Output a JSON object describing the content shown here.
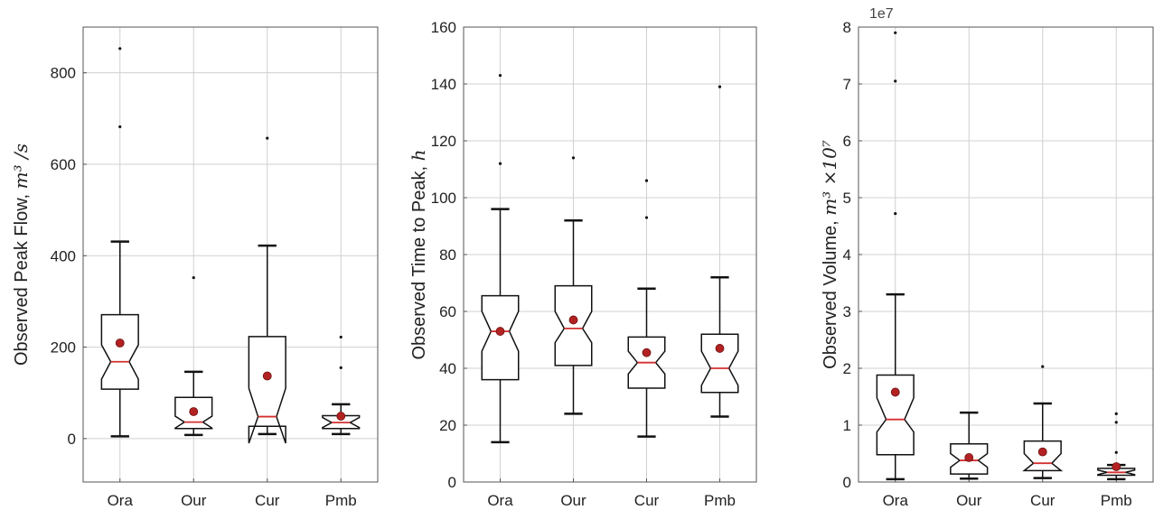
{
  "chart_data": [
    {
      "type": "box",
      "notched": true,
      "categories": [
        "Ora",
        "Our",
        "Cur",
        "Pmb"
      ],
      "ylabel": "Observed Peak Flow, ",
      "ylabel_math": "m³ /s",
      "ylim": [
        -95,
        900
      ],
      "yticks": [
        0,
        200,
        400,
        600,
        800
      ],
      "y_offset_label": "",
      "grid": true,
      "boxes": [
        {
          "category": "Ora",
          "whislo": 5,
          "q1": 108,
          "med": 168,
          "q3": 271,
          "whishi": 431,
          "notch_lo": 130,
          "notch_hi": 205,
          "mean": 209,
          "fliers": [
            682,
            853
          ]
        },
        {
          "category": "Our",
          "whislo": 8,
          "q1": 22,
          "med": 36,
          "q3": 90,
          "whishi": 146,
          "notch_lo": 23,
          "notch_hi": 49,
          "mean": 59,
          "fliers": [
            352
          ]
        },
        {
          "category": "Cur",
          "whislo": 10,
          "q1": 27,
          "med": 48,
          "q3": 223,
          "whishi": 422,
          "notch_lo": -10,
          "notch_hi": 110,
          "mean": 137,
          "fliers": [
            657
          ]
        },
        {
          "category": "Pmb",
          "whislo": 10,
          "q1": 22,
          "med": 35,
          "q3": 50,
          "whishi": 75,
          "notch_lo": 24,
          "notch_hi": 46,
          "mean": 49,
          "fliers": [
            155,
            222
          ]
        }
      ]
    },
    {
      "type": "box",
      "notched": true,
      "categories": [
        "Ora",
        "Our",
        "Cur",
        "Pmb"
      ],
      "ylabel": "Observed Time to Peak, ",
      "ylabel_math": "h",
      "ylim": [
        0,
        160
      ],
      "yticks": [
        0,
        20,
        40,
        60,
        80,
        100,
        120,
        140,
        160
      ],
      "y_offset_label": "",
      "grid": true,
      "boxes": [
        {
          "category": "Ora",
          "whislo": 14,
          "q1": 36,
          "med": 53,
          "q3": 65.5,
          "whishi": 96,
          "notch_lo": 46,
          "notch_hi": 60,
          "mean": 53,
          "fliers": [
            112,
            143
          ]
        },
        {
          "category": "Our",
          "whislo": 24,
          "q1": 41,
          "med": 54,
          "q3": 69,
          "whishi": 92,
          "notch_lo": 49,
          "notch_hi": 60,
          "mean": 57,
          "fliers": [
            114
          ]
        },
        {
          "category": "Cur",
          "whislo": 16,
          "q1": 33,
          "med": 42,
          "q3": 51,
          "whishi": 68,
          "notch_lo": 38,
          "notch_hi": 46,
          "mean": 45.5,
          "fliers": [
            93,
            106
          ]
        },
        {
          "category": "Pmb",
          "whislo": 23,
          "q1": 31.5,
          "med": 40,
          "q3": 52,
          "whishi": 72,
          "notch_lo": 34,
          "notch_hi": 46,
          "mean": 47,
          "fliers": [
            139
          ]
        }
      ]
    },
    {
      "type": "box",
      "notched": true,
      "categories": [
        "Ora",
        "Our",
        "Cur",
        "Pmb"
      ],
      "ylabel": "Observed Volume, ",
      "ylabel_math": "m³ ×10⁷",
      "ylim": [
        0,
        8
      ],
      "yticks": [
        0,
        1,
        2,
        3,
        4,
        5,
        6,
        7,
        8
      ],
      "y_offset_label": "1e7",
      "grid": true,
      "boxes": [
        {
          "category": "Ora",
          "whislo": 0.05,
          "q1": 0.48,
          "med": 1.1,
          "q3": 1.88,
          "whishi": 3.3,
          "notch_lo": 0.88,
          "notch_hi": 1.48,
          "mean": 1.58,
          "fliers": [
            4.72,
            7.05,
            7.9
          ]
        },
        {
          "category": "Our",
          "whislo": 0.06,
          "q1": 0.14,
          "med": 0.38,
          "q3": 0.67,
          "whishi": 1.22,
          "notch_lo": 0.26,
          "notch_hi": 0.5,
          "mean": 0.43,
          "fliers": []
        },
        {
          "category": "Cur",
          "whislo": 0.07,
          "q1": 0.2,
          "med": 0.33,
          "q3": 0.72,
          "whishi": 1.38,
          "notch_lo": 0.2,
          "notch_hi": 0.5,
          "mean": 0.53,
          "fliers": [
            2.03
          ]
        },
        {
          "category": "Pmb",
          "whislo": 0.05,
          "q1": 0.12,
          "med": 0.17,
          "q3": 0.24,
          "whishi": 0.3,
          "notch_lo": 0.13,
          "notch_hi": 0.21,
          "mean": 0.27,
          "fliers": [
            0.52,
            1.05,
            1.2
          ]
        }
      ]
    }
  ],
  "colors": {
    "box": "#111111",
    "median": "#d43030",
    "mean_fill": "#b32222",
    "mean_edge": "#6e1010",
    "grid": "#d0d0d0",
    "spine": "#555555",
    "flier": "#111111"
  }
}
